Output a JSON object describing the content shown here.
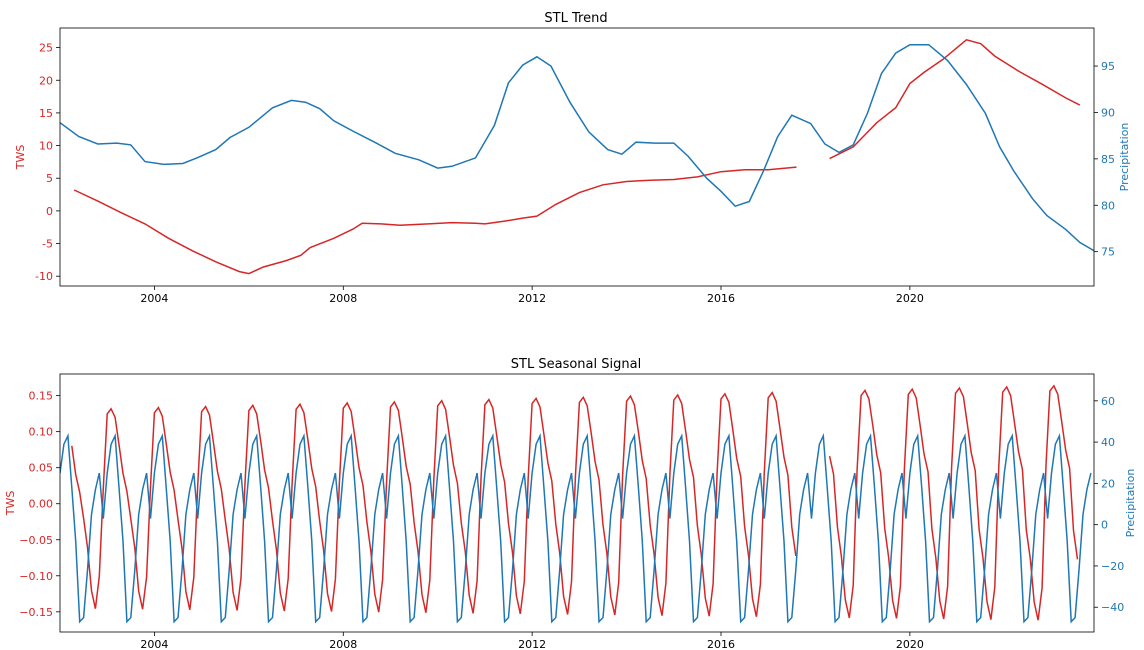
{
  "colors": {
    "tws": "#d62728",
    "precip": "#1f77b4"
  },
  "chart_data": [
    {
      "type": "line",
      "title": "STL Trend",
      "xlabel": "",
      "xlim": [
        2002.0,
        2023.9
      ],
      "x_ticks": [
        2004,
        2008,
        2012,
        2016,
        2020
      ],
      "x_tick_labels": [
        "2004",
        "2008",
        "2012",
        "2016",
        "2020"
      ],
      "left_axis": {
        "label": "TWS",
        "ylim": [
          -11.5,
          28
        ],
        "ticks": [
          -10,
          -5,
          0,
          5,
          10,
          15,
          20,
          25
        ]
      },
      "right_axis": {
        "label": "Precipitation",
        "ylim": [
          71.3,
          99.1
        ],
        "ticks": [
          75,
          80,
          85,
          90,
          95
        ]
      },
      "grid": false,
      "series": [
        {
          "name": "TWS",
          "axis": "left",
          "segments": [
            {
              "x": [
                2002.3,
                2002.8,
                2003.3,
                2003.8,
                2004.3,
                2004.8,
                2005.3,
                2005.8,
                2006.0,
                2006.3,
                2006.8,
                2007.1,
                2007.3,
                2007.8,
                2008.2,
                2008.4,
                2008.8,
                2009.2,
                2009.8,
                2010.3,
                2010.8,
                2011.0,
                2011.4,
                2011.8,
                2012.1,
                2012.5,
                2013.0,
                2013.5,
                2014.0,
                2014.5,
                2015.0,
                2015.5,
                2016.0,
                2016.5,
                2017.0,
                2017.6
              ],
              "y": [
                3.2,
                1.5,
                -0.3,
                -2.0,
                -4.2,
                -6.1,
                -7.8,
                -9.3,
                -9.6,
                -8.6,
                -7.6,
                -6.8,
                -5.6,
                -4.2,
                -2.8,
                -1.9,
                -2.0,
                -2.2,
                -2.0,
                -1.8,
                -1.9,
                -2.0,
                -1.6,
                -1.1,
                -0.8,
                1.0,
                2.8,
                4.0,
                4.5,
                4.7,
                4.8,
                5.2,
                6.0,
                6.3,
                6.3,
                6.7
              ]
            },
            {
              "x": [
                2018.3,
                2018.8,
                2019.3,
                2019.7,
                2020.0,
                2020.3,
                2020.7,
                2021.0,
                2021.2,
                2021.5,
                2021.8,
                2022.3,
                2022.8,
                2023.3,
                2023.6
              ],
              "y": [
                8.0,
                9.8,
                13.5,
                15.8,
                19.5,
                21.2,
                23.2,
                25.0,
                26.2,
                25.6,
                23.7,
                21.4,
                19.4,
                17.3,
                16.2
              ]
            }
          ]
        },
        {
          "name": "Precipitation",
          "axis": "right",
          "segments": [
            {
              "x": [
                2002.0,
                2002.4,
                2002.8,
                2003.2,
                2003.5,
                2003.8,
                2004.2,
                2004.6,
                2004.9,
                2005.3,
                2005.6,
                2006.0,
                2006.5,
                2006.9,
                2007.2,
                2007.5,
                2007.8,
                2008.2,
                2008.7,
                2009.1,
                2009.6,
                2010.0,
                2010.3,
                2010.8,
                2011.2,
                2011.5,
                2011.8,
                2012.1,
                2012.4,
                2012.8,
                2013.2,
                2013.6,
                2013.9,
                2014.2,
                2014.6,
                2015.0,
                2015.3,
                2015.7,
                2016.0,
                2016.3,
                2016.6,
                2016.9,
                2017.2,
                2017.5,
                2017.9,
                2018.2,
                2018.5,
                2018.8,
                2019.1,
                2019.4,
                2019.7,
                2020.0,
                2020.4,
                2020.8,
                2021.2,
                2021.6,
                2021.9,
                2022.2,
                2022.6,
                2022.9,
                2023.3,
                2023.6,
                2023.9
              ],
              "y": [
                88.9,
                87.4,
                86.6,
                86.7,
                86.5,
                84.7,
                84.4,
                84.5,
                85.1,
                86.0,
                87.3,
                88.4,
                90.5,
                91.3,
                91.1,
                90.4,
                89.1,
                88.0,
                86.7,
                85.6,
                84.9,
                84.0,
                84.2,
                85.1,
                88.6,
                93.2,
                95.1,
                96.0,
                95.0,
                91.1,
                87.9,
                86.0,
                85.5,
                86.8,
                86.7,
                86.7,
                85.3,
                82.9,
                81.5,
                79.9,
                80.4,
                83.7,
                87.4,
                89.7,
                88.8,
                86.6,
                85.7,
                86.5,
                89.9,
                94.2,
                96.4,
                97.3,
                97.3,
                95.6,
                93.0,
                89.9,
                86.3,
                83.7,
                80.7,
                78.9,
                77.4,
                76.0,
                75.1
              ]
            }
          ]
        }
      ]
    },
    {
      "type": "line",
      "title": "STL Seasonal Signal",
      "xlabel": "",
      "xlim": [
        2002.0,
        2023.9
      ],
      "x_ticks": [
        2004,
        2008,
        2012,
        2016,
        2020
      ],
      "x_tick_labels": [
        "2004",
        "2008",
        "2012",
        "2016",
        "2020"
      ],
      "left_axis": {
        "label": "TWS",
        "ylim": [
          -0.178,
          0.18
        ],
        "ticks": [
          -0.15,
          -0.1,
          -0.05,
          0.0,
          0.05,
          0.1,
          0.15
        ],
        "tick_labels": [
          "−0.15",
          "−0.10",
          "−0.05",
          "0.00",
          "0.05",
          "0.10",
          "0.15"
        ]
      },
      "right_axis": {
        "label": "Precipitation",
        "ylim": [
          -52,
          73
        ],
        "ticks": [
          -40,
          -20,
          0,
          20,
          40,
          60
        ],
        "tick_labels": [
          "−40",
          "−20",
          "0",
          "20",
          "40",
          "60"
        ]
      },
      "grid": false,
      "seasonal_pattern_by_month": {
        "TWS": [
          0.123,
          0.13,
          0.118,
          0.08,
          0.04,
          0.015,
          -0.02,
          -0.06,
          -0.12,
          -0.145,
          -0.1,
          0.02
        ],
        "Precipitation": [
          25,
          39,
          43,
          18,
          -8,
          -47,
          -45,
          -22,
          5,
          17,
          25,
          3
        ]
      },
      "series": [
        {
          "name": "TWS",
          "axis": "left",
          "segments": [
            {
              "x_start": 2002.25,
              "x_end": 2017.6,
              "step_months": 1,
              "pattern": "seasonal_pattern_by_month.TWS",
              "amplitude_growth_per_year": 0.0016
            },
            {
              "x_start": 2018.3,
              "x_end": 2023.6,
              "step_months": 1,
              "pattern": "seasonal_pattern_by_month.TWS",
              "amplitude_growth_per_year": 0.0016
            }
          ]
        },
        {
          "name": "Precipitation",
          "axis": "right",
          "segments": [
            {
              "x_start": 2002.0,
              "x_end": 2023.9,
              "step_months": 1,
              "pattern": "seasonal_pattern_by_month.Precipitation",
              "amplitude_growth_per_year": 0
            }
          ]
        }
      ]
    }
  ]
}
